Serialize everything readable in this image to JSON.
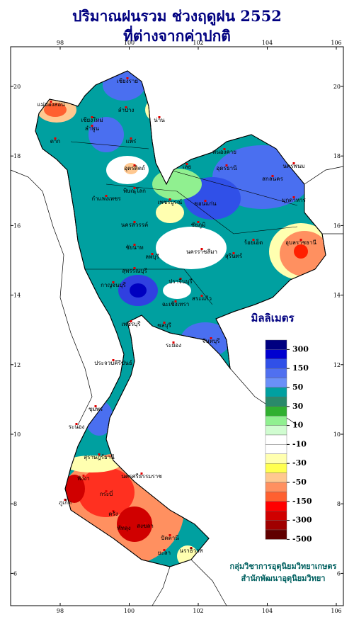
{
  "title": [
    "ปริมาณฝนรวม ช่วงฤดูฝน 2552",
    "ที่ต่างจากค่าปกติ"
  ],
  "map": {
    "lon_ticks": [
      98,
      100,
      102,
      104,
      106
    ],
    "lat_ticks": [
      6,
      8,
      10,
      12,
      14,
      16,
      18,
      20
    ]
  },
  "legend": {
    "title": "มิลลิเมตร",
    "levels": [
      300,
      150,
      50,
      30,
      10,
      -10,
      -30,
      -50,
      -150,
      -300,
      -500
    ],
    "colors": [
      "#000080",
      "#0000d0",
      "#3050e8",
      "#5070f0",
      "#6a90f8",
      "#00a0a0",
      "#2a8a6a",
      "#30b030",
      "#90f090",
      "#d0fcd0",
      "#ffffff",
      "#ffffff",
      "#ffffb0",
      "#ffff50",
      "#ffc890",
      "#ff9060",
      "#ff6030",
      "#ff0000",
      "#d00000",
      "#a00000",
      "#600000"
    ]
  },
  "places": [
    "แม่ฮ่องสอน",
    "เชียงราย",
    "เชียงใหม่",
    "ลำพูน",
    "ลำปาง",
    "น่าน",
    "แพร่",
    "ตาก",
    "อุตรดิตถ์",
    "พิษณุโลก",
    "กำแพงเพชร",
    "เพชรบูรณ์",
    "เลย",
    "หนองคาย",
    "อุดรธานี",
    "นครพนม",
    "สกลนคร",
    "มุกดาหาร",
    "ขอนแก่น",
    "ชัยภูมิ",
    "ร้อยเอ็ด",
    "นครสวรรค์",
    "ชัยนาท",
    "ลพบุรี",
    "นครราชสีมา",
    "สุรินทร์",
    "อุบลราชธานี",
    "สุพรรณบุรี",
    "กาญจนบุรี",
    "ปราจีนบุรี",
    "สระแก้ว",
    "ฉะเชิงเทรา",
    "ชลบุรี",
    "ระยอง",
    "จันทบุรี",
    "เพชรบุรี",
    "ประจวบคีรีขันธ์",
    "ชุมพร",
    "ระนอง",
    "สุราษฎร์ธานี",
    "นครศรีธรรมราช",
    "พังงา",
    "กระบี่",
    "ภูเก็ต",
    "ตรัง",
    "พัทลุง",
    "สงขลา",
    "ปัตตานี",
    "ยะลา",
    "นราธิวาส"
  ],
  "credits": [
    "กลุ่มวิชาการอุตุนิยมวิทยาเกษตร",
    "สำนักพัฒนาอุตุนิยมวิทยา"
  ]
}
